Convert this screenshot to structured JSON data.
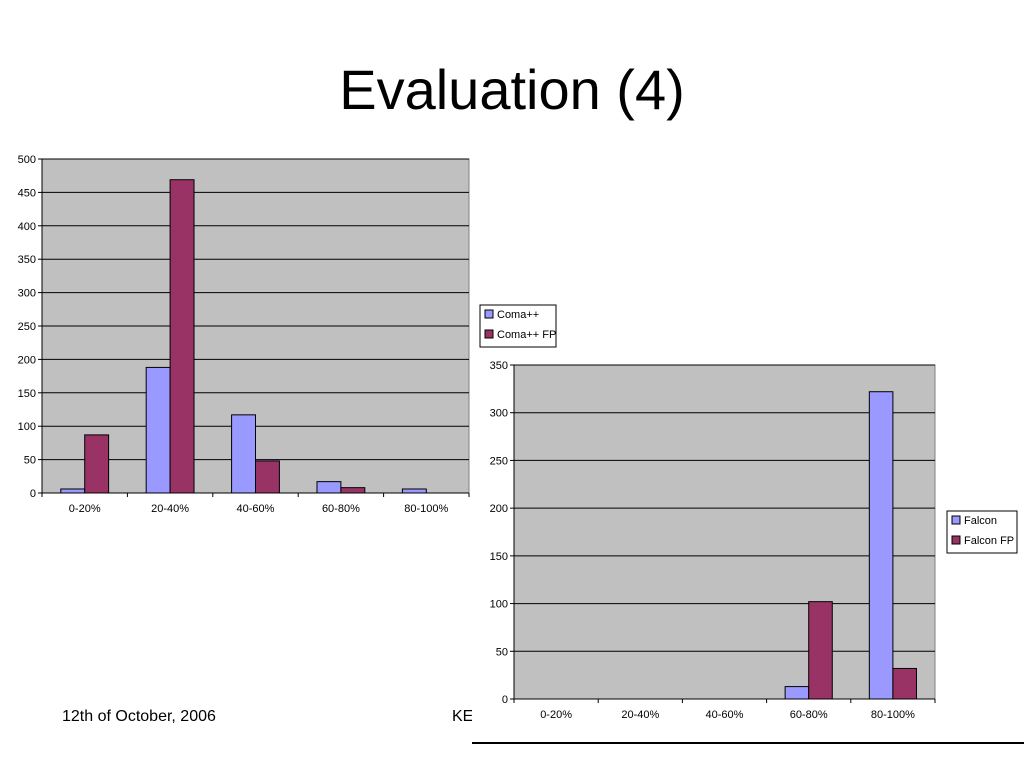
{
  "slide": {
    "title": "Evaluation (4)",
    "footer_date": "12th of October, 2006",
    "footer_center": "KE"
  },
  "colors": {
    "series_a": "#9999ff",
    "series_b": "#993366",
    "plot_bg": "#c0c0c0",
    "grid": "#000000"
  },
  "chart_data": [
    {
      "type": "bar",
      "categories": [
        "0-20%",
        "20-40%",
        "40-60%",
        "60-80%",
        "80-100%"
      ],
      "series": [
        {
          "name": "Coma++",
          "values": [
            6,
            188,
            117,
            17,
            6
          ]
        },
        {
          "name": "Coma++ FP",
          "values": [
            87,
            469,
            48,
            8,
            0
          ]
        }
      ],
      "ylim": [
        0,
        500
      ],
      "yticks": [
        0,
        50,
        100,
        150,
        200,
        250,
        300,
        350,
        400,
        450,
        500
      ],
      "grid": true,
      "legend": "right"
    },
    {
      "type": "bar",
      "categories": [
        "0-20%",
        "20-40%",
        "40-60%",
        "60-80%",
        "80-100%"
      ],
      "series": [
        {
          "name": "Falcon",
          "values": [
            0,
            0,
            0,
            13,
            322
          ]
        },
        {
          "name": "Falcon FP",
          "values": [
            0,
            0,
            0,
            102,
            32
          ]
        }
      ],
      "ylim": [
        0,
        350
      ],
      "yticks": [
        0,
        50,
        100,
        150,
        200,
        250,
        300,
        350
      ],
      "grid": true,
      "legend": "right"
    }
  ]
}
